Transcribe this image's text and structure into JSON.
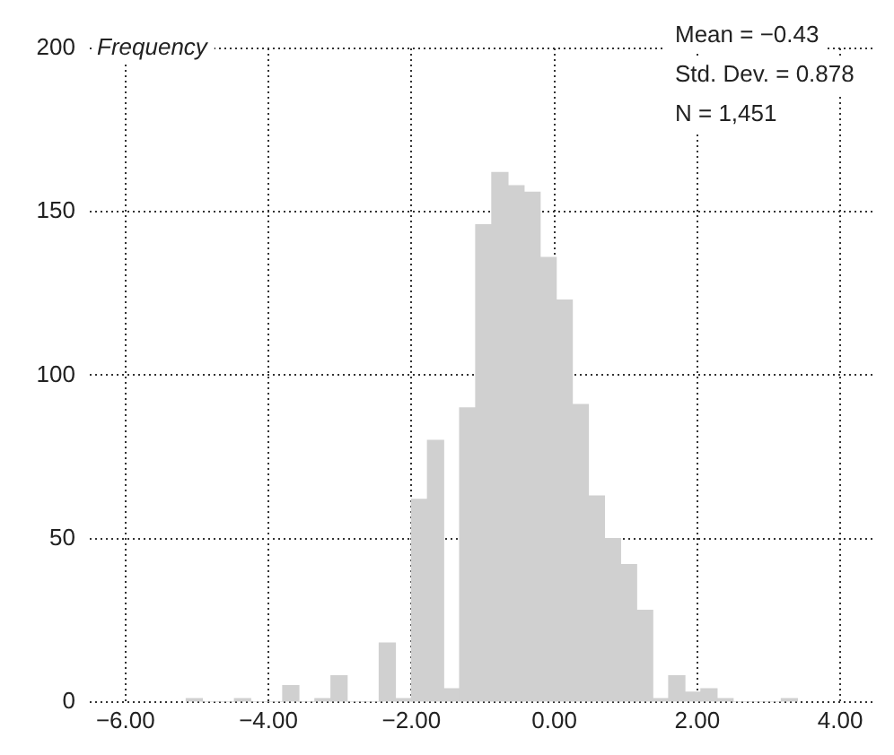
{
  "chart_data": {
    "type": "histogram",
    "ylabel": "Frequency",
    "bins": [
      -5.15,
      -4.925,
      -4.7,
      -4.475,
      -4.25,
      -4.025,
      -3.8,
      -3.575,
      -3.35,
      -3.125,
      -2.9,
      -2.675,
      -2.45,
      -2.225,
      -2,
      -1.775,
      -1.55,
      -1.325,
      -1.1,
      -0.875,
      -0.65,
      -0.425,
      -0.2,
      0.025,
      0.25,
      0.475,
      0.7,
      0.925,
      1.15,
      1.375,
      1.6,
      1.825,
      2.05,
      2.275,
      2.5,
      2.725,
      2.95,
      3.175,
      3.4
    ],
    "values": [
      1,
      0,
      0,
      1,
      0,
      0,
      5,
      0,
      1,
      8,
      0,
      0,
      18,
      1,
      62,
      80,
      4,
      90,
      146,
      162,
      158,
      156,
      136,
      123,
      91,
      63,
      50,
      42,
      28,
      1,
      8,
      3,
      4,
      1,
      0,
      0,
      0,
      1
    ],
    "color": "#d0d0d0",
    "xlim": [
      -6.5,
      4.5
    ],
    "xticks": [
      {
        "value": -6,
        "label": "−6.00"
      },
      {
        "value": -4,
        "label": "−4.00"
      },
      {
        "value": -2,
        "label": "−2.00"
      },
      {
        "value": 0,
        "label": "0.00"
      },
      {
        "value": 2,
        "label": "2.00"
      },
      {
        "value": 4,
        "label": "4.00"
      }
    ],
    "ylim": [
      0,
      200
    ],
    "yticks": [
      0,
      50,
      100,
      150,
      200
    ],
    "grid": true,
    "legend": false,
    "annotations": [
      "Mean = −0.43",
      "Std. Dev. = 0.878",
      "N = 1,451"
    ]
  }
}
